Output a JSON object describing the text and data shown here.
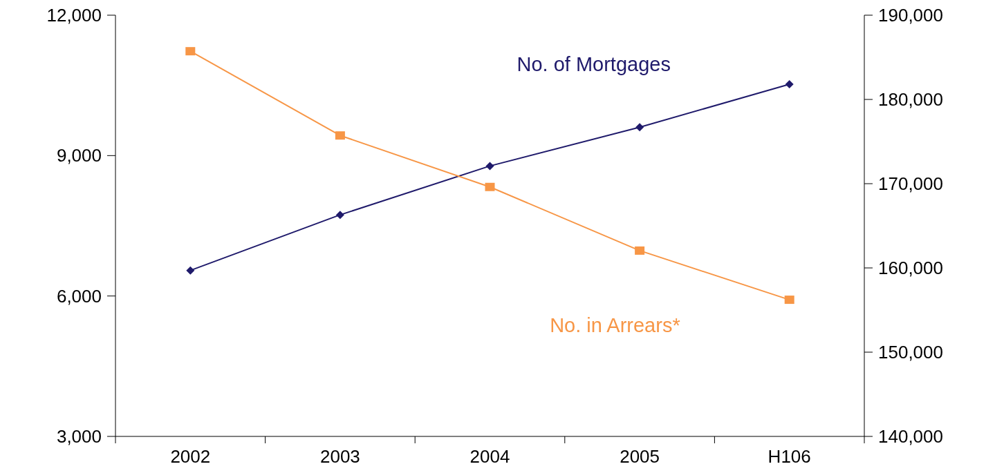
{
  "chart_data": {
    "type": "line",
    "categories": [
      "2002",
      "2003",
      "2004",
      "2005",
      "H106"
    ],
    "series": [
      {
        "name": "No. of Mortgages",
        "color": "#1f1a6b",
        "axis": "y2",
        "marker": "diamond",
        "values": [
          159700,
          166300,
          172100,
          176700,
          181800
        ]
      },
      {
        "name": "No. in Arrears*",
        "color": "#f79646",
        "marker": "square",
        "values": [
          11230,
          9430,
          8330,
          6970,
          5920
        ]
      }
    ],
    "ylim": [
      3000,
      12000
    ],
    "yticks": [
      {
        "value": 3000,
        "label": "3,000"
      },
      {
        "value": 6000,
        "label": "6,000"
      },
      {
        "value": 9000,
        "label": "9,000"
      },
      {
        "value": 12000,
        "label": "12,000"
      }
    ],
    "y2lim": [
      140000,
      190000
    ],
    "y2ticks": [
      {
        "value": 140000,
        "label": "140,000"
      },
      {
        "value": 150000,
        "label": "150,000"
      },
      {
        "value": 160000,
        "label": "160,000"
      },
      {
        "value": 170000,
        "label": "170,000"
      },
      {
        "value": 180000,
        "label": "180,000"
      },
      {
        "value": 190000,
        "label": "190,000"
      }
    ],
    "grid": false,
    "legend": false
  }
}
